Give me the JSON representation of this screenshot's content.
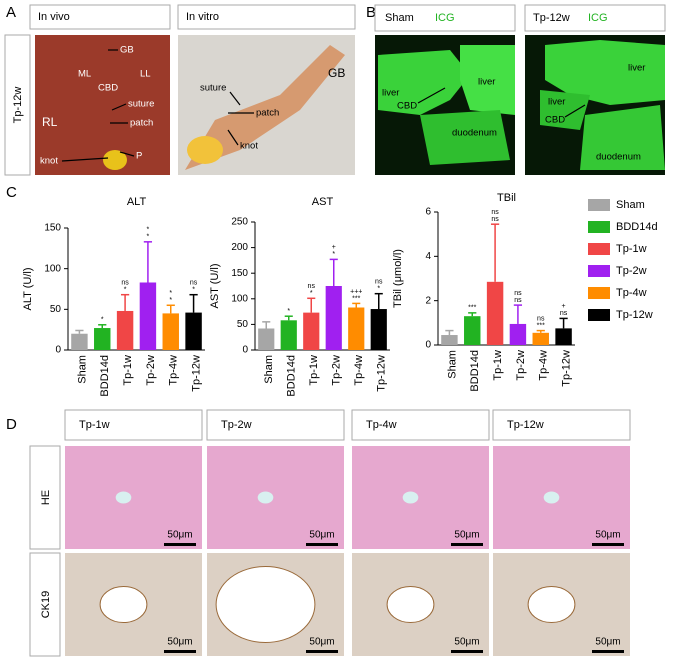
{
  "panels": {
    "a": "A",
    "b": "B",
    "c": "C",
    "d": "D"
  },
  "panel_a": {
    "headers": [
      "In vivo",
      "In vitro"
    ],
    "row_label": "Tp-12w",
    "in_vivo_labels": [
      "GB",
      "ML",
      "LL",
      "CBD",
      "suture",
      "RL",
      "patch",
      "knot",
      "P"
    ],
    "in_vitro_labels": [
      "suture",
      "patch",
      "GB",
      "knot"
    ]
  },
  "panel_b": {
    "headers": [
      {
        "group": "Sham",
        "dye": "ICG"
      },
      {
        "group": "Tp-12w",
        "dye": "ICG"
      }
    ],
    "sham_labels": [
      "liver",
      "CBD",
      "liver",
      "duodenum"
    ],
    "tp12w_labels": [
      "liver",
      "liver",
      "CBD",
      "duodenum"
    ]
  },
  "panel_d": {
    "headers": [
      "Tp-1w",
      "Tp-2w",
      "Tp-4w",
      "Tp-12w"
    ],
    "rows": [
      "HE",
      "CK19"
    ],
    "scale_bars": [
      "50μm",
      "50μm",
      "50μm",
      "50μm",
      "50μm",
      "50μm",
      "50μm",
      "50μm"
    ]
  },
  "chart_data": [
    {
      "type": "bar",
      "title": "ALT",
      "y_label": "ALT (U/l)",
      "categories": [
        "Sham",
        "BDD14d",
        "Tp-1w",
        "Tp-2w",
        "Tp-4w",
        "Tp-12w"
      ],
      "colors": [
        "#a6a6a6",
        "#22b322",
        "#f04646",
        "#a020f0",
        "#ff8c00",
        "#000000"
      ],
      "values": [
        20,
        27,
        48,
        83,
        45,
        46
      ],
      "errors": [
        4,
        4,
        20,
        50,
        10,
        22
      ],
      "annotations": [
        [],
        [
          "*"
        ],
        [
          "ns",
          "*"
        ],
        [
          "*",
          "*"
        ],
        [
          "*",
          "*"
        ],
        [
          "ns",
          "*"
        ]
      ],
      "ylim": [
        0,
        150
      ],
      "yticks": [
        0,
        50,
        100,
        150
      ]
    },
    {
      "type": "bar",
      "title": "AST",
      "y_label": "AST (U/l)",
      "categories": [
        "Sham",
        "BDD14d",
        "Tp-1w",
        "Tp-2w",
        "Tp-4w",
        "Tp-12w"
      ],
      "colors": [
        "#a6a6a6",
        "#22b322",
        "#f04646",
        "#a020f0",
        "#ff8c00",
        "#000000"
      ],
      "values": [
        42,
        58,
        73,
        125,
        83,
        80
      ],
      "errors": [
        13,
        8,
        28,
        52,
        8,
        30
      ],
      "annotations": [
        [],
        [
          "*"
        ],
        [
          "ns",
          "*"
        ],
        [
          "+",
          "*"
        ],
        [
          "+++",
          "***"
        ],
        [
          "ns",
          "*"
        ]
      ],
      "ylim": [
        0,
        250
      ],
      "yticks": [
        0,
        50,
        100,
        150,
        200,
        250
      ]
    },
    {
      "type": "bar",
      "title": "TBil",
      "y_label": "TBil (μmol/l)",
      "categories": [
        "Sham",
        "BDD14d",
        "Tp-1w",
        "Tp-2w",
        "Tp-4w",
        "Tp-12w"
      ],
      "colors": [
        "#a6a6a6",
        "#22b322",
        "#f04646",
        "#a020f0",
        "#ff8c00",
        "#000000"
      ],
      "values": [
        0.45,
        1.3,
        2.85,
        0.95,
        0.55,
        0.75
      ],
      "errors": [
        0.2,
        0.15,
        2.6,
        0.85,
        0.1,
        0.45
      ],
      "annotations": [
        [],
        [
          "***"
        ],
        [
          "ns",
          "ns"
        ],
        [
          "ns",
          "ns"
        ],
        [
          "ns",
          "***"
        ],
        [
          "+",
          "ns"
        ]
      ],
      "ylim": [
        0,
        6
      ],
      "yticks": [
        0,
        2,
        4,
        6
      ],
      "legend": "right"
    }
  ]
}
